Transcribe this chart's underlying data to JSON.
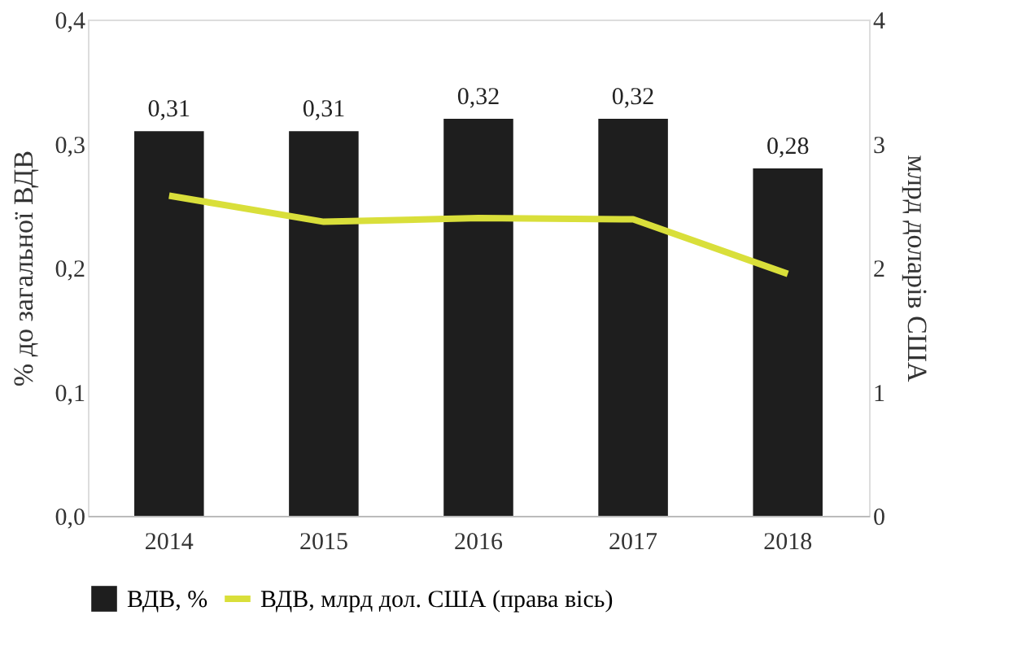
{
  "chart_data": {
    "type": "bar",
    "categories": [
      "2014",
      "2015",
      "2016",
      "2017",
      "2018"
    ],
    "ylabel": "% до загальної ВДВ",
    "y2label": "млрд доларів США",
    "ylim": [
      0,
      0.4
    ],
    "yticks": [
      {
        "value": 0,
        "label": "0,0"
      },
      {
        "value": 0.1,
        "label": "0,1"
      },
      {
        "value": 0.2,
        "label": "0,2"
      },
      {
        "value": 0.3,
        "label": "0,3"
      },
      {
        "value": 0.4,
        "label": "0,4"
      }
    ],
    "y2lim": [
      0,
      4
    ],
    "y2ticks": [
      0,
      1,
      2,
      3,
      4
    ],
    "series": [
      {
        "name": "ВДВ, %",
        "color": "#1e1e1e",
        "values": [
          0.31,
          0.31,
          0.32,
          0.32,
          0.28
        ],
        "value_labels": [
          "0,31",
          "0,31",
          "0,32",
          "0,32",
          "0,28"
        ]
      },
      {
        "name": "ВДВ, млрд дол. США (права вісь)",
        "type": "line",
        "axis": "y2",
        "color": "#d9df3a",
        "values": [
          2.58,
          2.37,
          2.4,
          2.39,
          1.95
        ]
      }
    ],
    "legend": "bottom",
    "grid": false,
    "marker": "none"
  }
}
